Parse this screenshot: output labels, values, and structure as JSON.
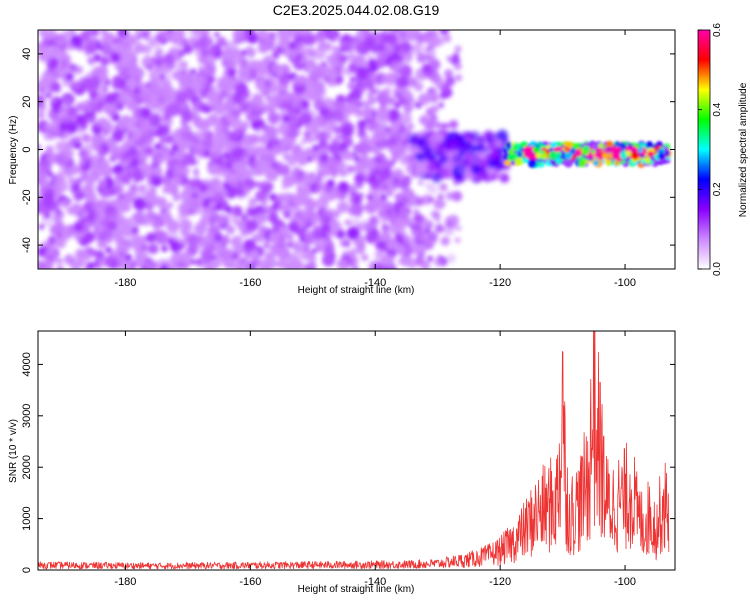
{
  "figure": {
    "title": "C2E3.2025.044.02.08.G19"
  },
  "chart_data": [
    {
      "type": "heatmap",
      "title": "C2E3.2025.044.02.08.G19",
      "xlabel": "Height of straight line (km)",
      "ylabel": "Frequency (Hz)",
      "xlim": [
        -194,
        -92
      ],
      "ylim": [
        -50,
        50
      ],
      "x_ticks": [
        -180,
        -160,
        -140,
        -120,
        -100
      ],
      "y_ticks": [
        -40,
        -20,
        0,
        20,
        40
      ],
      "colorbar": {
        "label": "Normalized spectral amplitude",
        "range": [
          0,
          0.6
        ],
        "ticks": [
          0.0,
          0.2,
          0.4,
          0.6
        ],
        "tick_labels": [
          "0.0",
          "0.2",
          "0.4",
          "0.6"
        ],
        "colors": [
          "#ffffff",
          "#cc88ff",
          "#8800ff",
          "#0000ff",
          "#00ffff",
          "#00ff00",
          "#ffff00",
          "#ff0000",
          "#ff00aa"
        ]
      },
      "regions": [
        {
          "x_range": [
            -194,
            -126
          ],
          "freq_range": [
            -50,
            50
          ],
          "amplitude": 0.05
        },
        {
          "x_range": [
            -134,
            -119
          ],
          "freq_range": [
            -12,
            6
          ],
          "amplitude": 0.08
        },
        {
          "x_range": [
            -119,
            -93
          ],
          "freq_range": [
            -6,
            2
          ],
          "amplitude": 0.3
        },
        {
          "x_range": [
            -116,
            -94
          ],
          "freq_range": [
            -3,
            0
          ],
          "amplitude": 0.55
        }
      ]
    },
    {
      "type": "line",
      "xlabel": "Height of straight line (km)",
      "ylabel": "SNR (10 * v/v)",
      "xlim": [
        -194,
        -92
      ],
      "ylim": [
        0,
        4650
      ],
      "x_ticks": [
        -180,
        -160,
        -140,
        -120,
        -100
      ],
      "y_ticks": [
        0,
        1000,
        2000,
        3000,
        4000
      ],
      "color": "#ee3333",
      "series": [
        {
          "x": [
            -194,
            -185,
            -175,
            -165,
            -155,
            -145,
            -135,
            -130,
            -125,
            -122,
            -120,
            -118,
            -116,
            -114,
            -112,
            -111,
            -110,
            -109,
            -108,
            -107,
            -106,
            -105,
            -104,
            -103,
            -102,
            -101,
            -100,
            -99,
            -98,
            -97,
            -96,
            -95,
            -94,
            -93
          ],
          "y": [
            150,
            140,
            130,
            140,
            150,
            160,
            170,
            200,
            320,
            450,
            600,
            850,
            1250,
            1750,
            2000,
            2100,
            4250,
            1600,
            1900,
            2150,
            2800,
            4650,
            3650,
            2100,
            2000,
            2100,
            2200,
            2550,
            1650,
            1400,
            1700,
            1250,
            2000,
            1900
          ]
        }
      ]
    }
  ]
}
